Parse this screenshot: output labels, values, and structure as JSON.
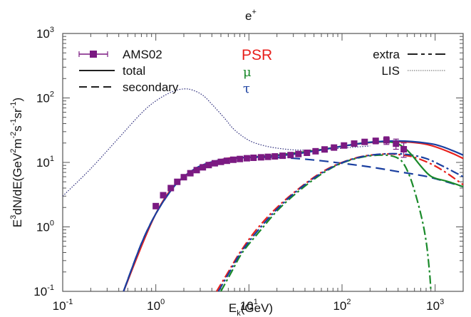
{
  "chart_data": {
    "type": "line",
    "title": "e",
    "title_superscript": "+",
    "xlabel": "E",
    "xlabel_sub": "k",
    "xlabel_rest": "(GeV)",
    "ylabel_parts": [
      "E",
      "3",
      "dN/dE(GeV",
      "2",
      "m",
      "-2",
      "s",
      "-1",
      "sr",
      "-1",
      ")"
    ],
    "xscale": "log",
    "yscale": "log",
    "xlim": [
      0.1,
      2000
    ],
    "ylim": [
      0.1,
      1000
    ],
    "x_ticks": [
      {
        "base": "10",
        "exp": "-1",
        "value": 0.1
      },
      {
        "base": "10",
        "exp": "0",
        "value": 1
      },
      {
        "base": "10",
        "exp": "1",
        "value": 10
      },
      {
        "base": "10",
        "exp": "2",
        "value": 100
      },
      {
        "base": "10",
        "exp": "3",
        "value": 1000
      }
    ],
    "y_ticks": [
      {
        "base": "10",
        "exp": "-1",
        "value": 0.1
      },
      {
        "base": "10",
        "exp": "0",
        "value": 1
      },
      {
        "base": "10",
        "exp": "1",
        "value": 10
      },
      {
        "base": "10",
        "exp": "2",
        "value": 100
      },
      {
        "base": "10",
        "exp": "3",
        "value": 1000
      }
    ],
    "grid": false,
    "legend_styles": [
      {
        "label": "AMS02",
        "style": "markers-errorbars",
        "color": "#7b1a82",
        "position": "top-left"
      },
      {
        "label": "total",
        "style": "solid",
        "color": "#000000",
        "position": "top-left"
      },
      {
        "label": "secondary",
        "style": "dashed",
        "color": "#000000",
        "position": "top-left"
      },
      {
        "label": "extra",
        "style": "dash-dot",
        "color": "#000000",
        "position": "top-right"
      },
      {
        "label": "LIS",
        "style": "dotted",
        "color": "#555555",
        "position": "top-right"
      }
    ],
    "legend_models": [
      {
        "label": "PSR",
        "color": "#e8201c"
      },
      {
        "label": "μ",
        "color": "#1a8a2a"
      },
      {
        "label": "τ",
        "color": "#1a3fa0"
      }
    ],
    "series": [
      {
        "name": "AMS02",
        "kind": "data",
        "color": "#7b1a82",
        "x": [
          1.0,
          1.2,
          1.45,
          1.7,
          2.0,
          2.35,
          2.75,
          3.2,
          3.7,
          4.3,
          5.0,
          5.8,
          6.8,
          8.0,
          9.5,
          11.2,
          13.5,
          16,
          19,
          23,
          28,
          34,
          42,
          52,
          65,
          82,
          105,
          135,
          175,
          230,
          300,
          380,
          460
        ],
        "y": [
          2.1,
          3.1,
          4.0,
          5.0,
          5.9,
          6.8,
          7.6,
          8.4,
          9.1,
          9.7,
          10.2,
          10.6,
          11.0,
          11.3,
          11.6,
          11.8,
          12.0,
          12.2,
          12.4,
          12.7,
          13.0,
          13.5,
          14.1,
          14.9,
          15.9,
          17.0,
          18.3,
          19.6,
          20.8,
          21.6,
          22.0,
          19.5,
          16.0
        ],
        "yerr": [
          0.1,
          0.1,
          0.1,
          0.1,
          0.1,
          0.1,
          0.1,
          0.1,
          0.1,
          0.1,
          0.1,
          0.1,
          0.1,
          0.1,
          0.1,
          0.1,
          0.1,
          0.1,
          0.15,
          0.2,
          0.25,
          0.3,
          0.4,
          0.5,
          0.6,
          0.8,
          1.0,
          1.3,
          1.7,
          2.2,
          3.0,
          3.5,
          4.0
        ]
      },
      {
        "name": "LIS",
        "kind": "dotted",
        "color": "#2a2a7a",
        "x": [
          0.1,
          0.2,
          0.4,
          0.7,
          1.0,
          1.5,
          2.0,
          2.5,
          3.2,
          4.0,
          5.5,
          7.0,
          10,
          15,
          25,
          40,
          70,
          120,
          200
        ],
        "y": [
          3.0,
          8.0,
          24,
          58,
          90,
          125,
          138,
          132,
          110,
          80,
          48,
          32,
          22,
          18,
          16,
          15.5,
          16,
          17,
          18
        ]
      },
      {
        "name": "secondary",
        "kind": "dashed",
        "color": "#1a3fa0",
        "x": [
          0.45,
          0.7,
          1.0,
          1.5,
          2.0,
          3.0,
          5.0,
          8.0,
          15,
          30,
          60,
          100,
          200,
          400,
          700,
          1000,
          2000
        ],
        "y": [
          0.1,
          0.55,
          1.6,
          3.9,
          6.0,
          8.8,
          11.0,
          11.8,
          12.0,
          11.6,
          10.6,
          9.7,
          8.5,
          7.2,
          6.3,
          5.6,
          4.2
        ]
      },
      {
        "name": "PSR extra",
        "kind": "dash-dot",
        "color": "#e8201c",
        "x": [
          4.5,
          6,
          8,
          12,
          20,
          35,
          60,
          100,
          170,
          300,
          450,
          600,
          900,
          1300,
          2000
        ],
        "y": [
          0.1,
          0.2,
          0.4,
          0.9,
          2.0,
          4.0,
          7.0,
          10.0,
          12.5,
          13.5,
          13.0,
          12.0,
          9.5,
          7.0,
          4.5
        ]
      },
      {
        "name": "PSR total",
        "kind": "solid",
        "color": "#e8201c",
        "x": [
          0.45,
          1.0,
          2.0,
          5.0,
          10,
          20,
          50,
          100,
          200,
          400,
          700,
          1000,
          1500,
          2000
        ],
        "y": [
          0.1,
          1.6,
          6.0,
          11.0,
          12.0,
          13.0,
          15.2,
          17.8,
          20.3,
          21.0,
          19.8,
          17.5,
          14.0,
          11.5
        ]
      },
      {
        "name": "μ extra",
        "kind": "dash-dot",
        "color": "#1a8a2a",
        "x": [
          5.0,
          6.5,
          8.5,
          13,
          21,
          36,
          62,
          100,
          170,
          280,
          380,
          460,
          560,
          700,
          800,
          870,
          900
        ],
        "y": [
          0.1,
          0.2,
          0.4,
          0.85,
          1.9,
          3.8,
          6.8,
          9.8,
          12.2,
          13.0,
          12.0,
          9.5,
          5.0,
          1.6,
          0.6,
          0.2,
          0.1
        ]
      },
      {
        "name": "μ total",
        "kind": "solid",
        "color": "#1a8a2a",
        "x": [
          10,
          20,
          50,
          100,
          200,
          350,
          450,
          550,
          700,
          850,
          1000,
          1400,
          2000
        ],
        "y": [
          12.0,
          13.0,
          15.2,
          17.8,
          20.6,
          20.5,
          17.5,
          13.5,
          8.8,
          6.5,
          5.7,
          5.0,
          4.2
        ]
      },
      {
        "name": "τ extra",
        "kind": "dash-dot",
        "color": "#1a3fa0",
        "x": [
          4.7,
          6.2,
          8.2,
          12.5,
          20.5,
          35,
          61,
          100,
          170,
          300,
          500,
          800,
          1200,
          2000
        ],
        "y": [
          0.1,
          0.2,
          0.4,
          0.88,
          1.95,
          3.9,
          6.9,
          9.9,
          12.4,
          13.6,
          13.3,
          11.5,
          8.8,
          6.0
        ]
      },
      {
        "name": "τ total",
        "kind": "solid",
        "color": "#1a3fa0",
        "x": [
          0.45,
          0.7,
          1.0,
          1.5,
          2.0,
          3.0,
          5.0,
          8.0,
          15,
          30,
          60,
          100,
          200,
          400,
          800,
          1200,
          2000
        ],
        "y": [
          0.1,
          0.55,
          1.6,
          3.9,
          6.0,
          8.8,
          11.0,
          11.8,
          12.3,
          13.4,
          15.6,
          17.8,
          20.5,
          21.5,
          20.0,
          17.5,
          13.0
        ]
      }
    ]
  }
}
